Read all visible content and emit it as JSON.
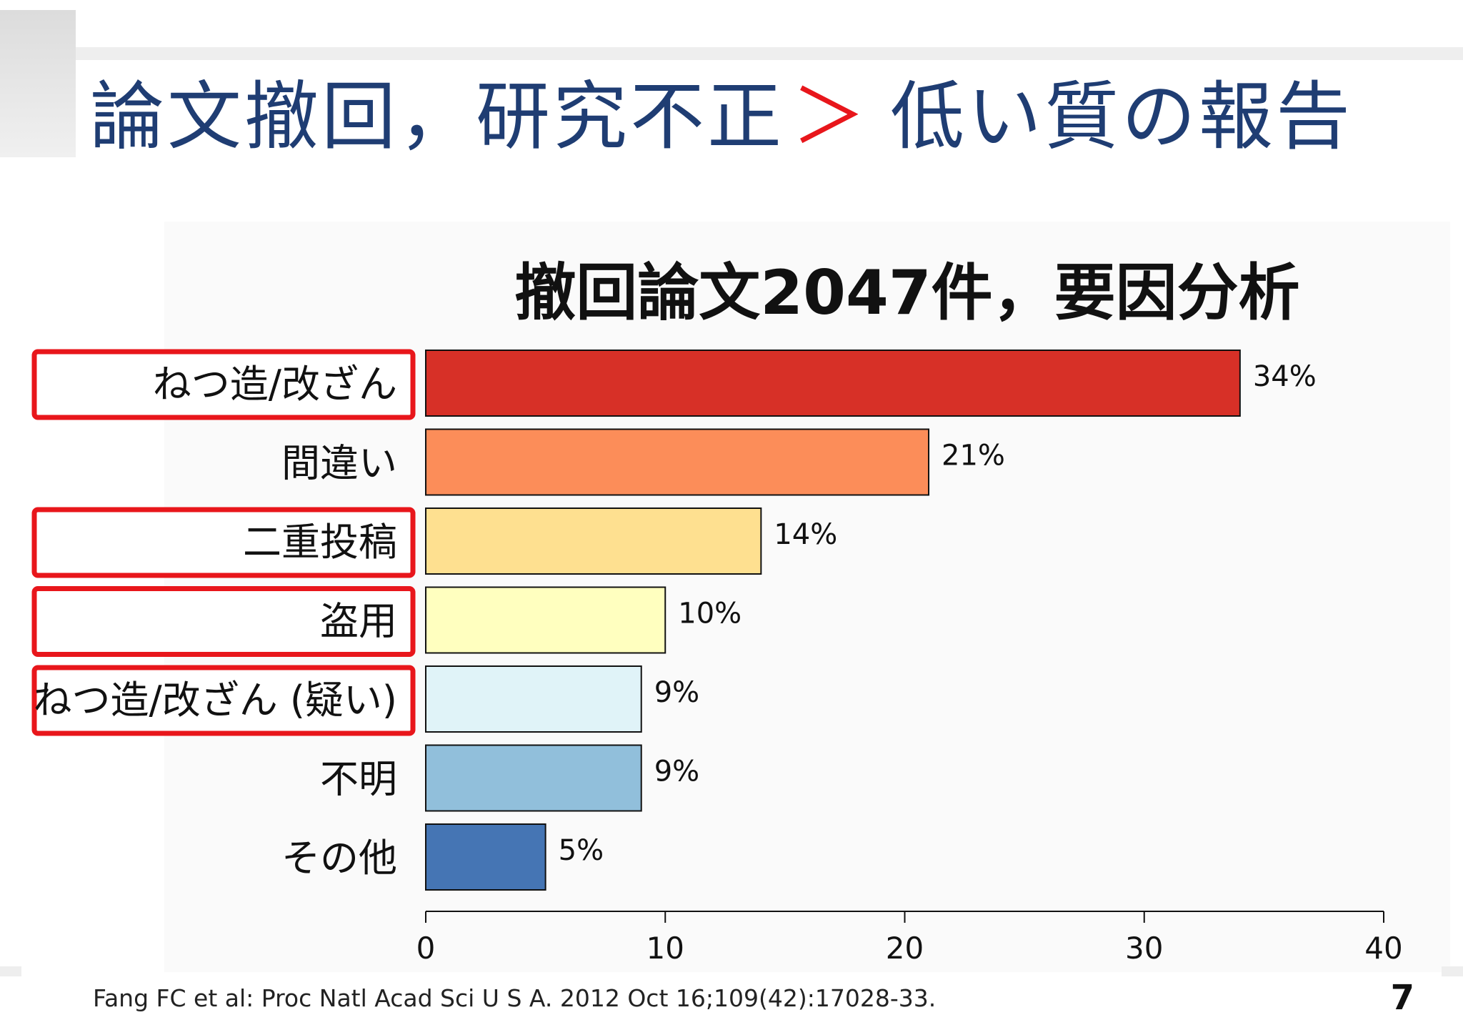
{
  "slide": {
    "title_main": "論文撤回，研究不正",
    "title_sep": "＞",
    "title_rest": "低い質の報告",
    "citation": "Fang FC et al: Proc Natl Acad Sci U S A. 2012 Oct 16;109(42):17028-33.",
    "page_number": "7"
  },
  "chart_data": {
    "type": "bar",
    "orientation": "horizontal",
    "title": "撤回論文2047件，要因分析",
    "categories": [
      "ねつ造/改ざん",
      "間違い",
      "二重投稿",
      "盗用",
      "ねつ造/改ざん (疑い)",
      "不明",
      "その他"
    ],
    "values": [
      34,
      21,
      14,
      10,
      9,
      9,
      5
    ],
    "value_labels": [
      "34%",
      "21%",
      "14%",
      "10%",
      "9%",
      "9%",
      "5%"
    ],
    "colors": [
      "#d73027",
      "#fc8d59",
      "#fee090",
      "#ffffbf",
      "#e0f3f8",
      "#91bfdb",
      "#4575b4"
    ],
    "highlighted": [
      true,
      false,
      true,
      true,
      true,
      false,
      false
    ],
    "highlight_color": "#e8161b",
    "xlim": [
      0,
      40
    ],
    "xticks": [
      0,
      10,
      20,
      30,
      40
    ],
    "grid": false,
    "xlabel": "",
    "ylabel": ""
  }
}
